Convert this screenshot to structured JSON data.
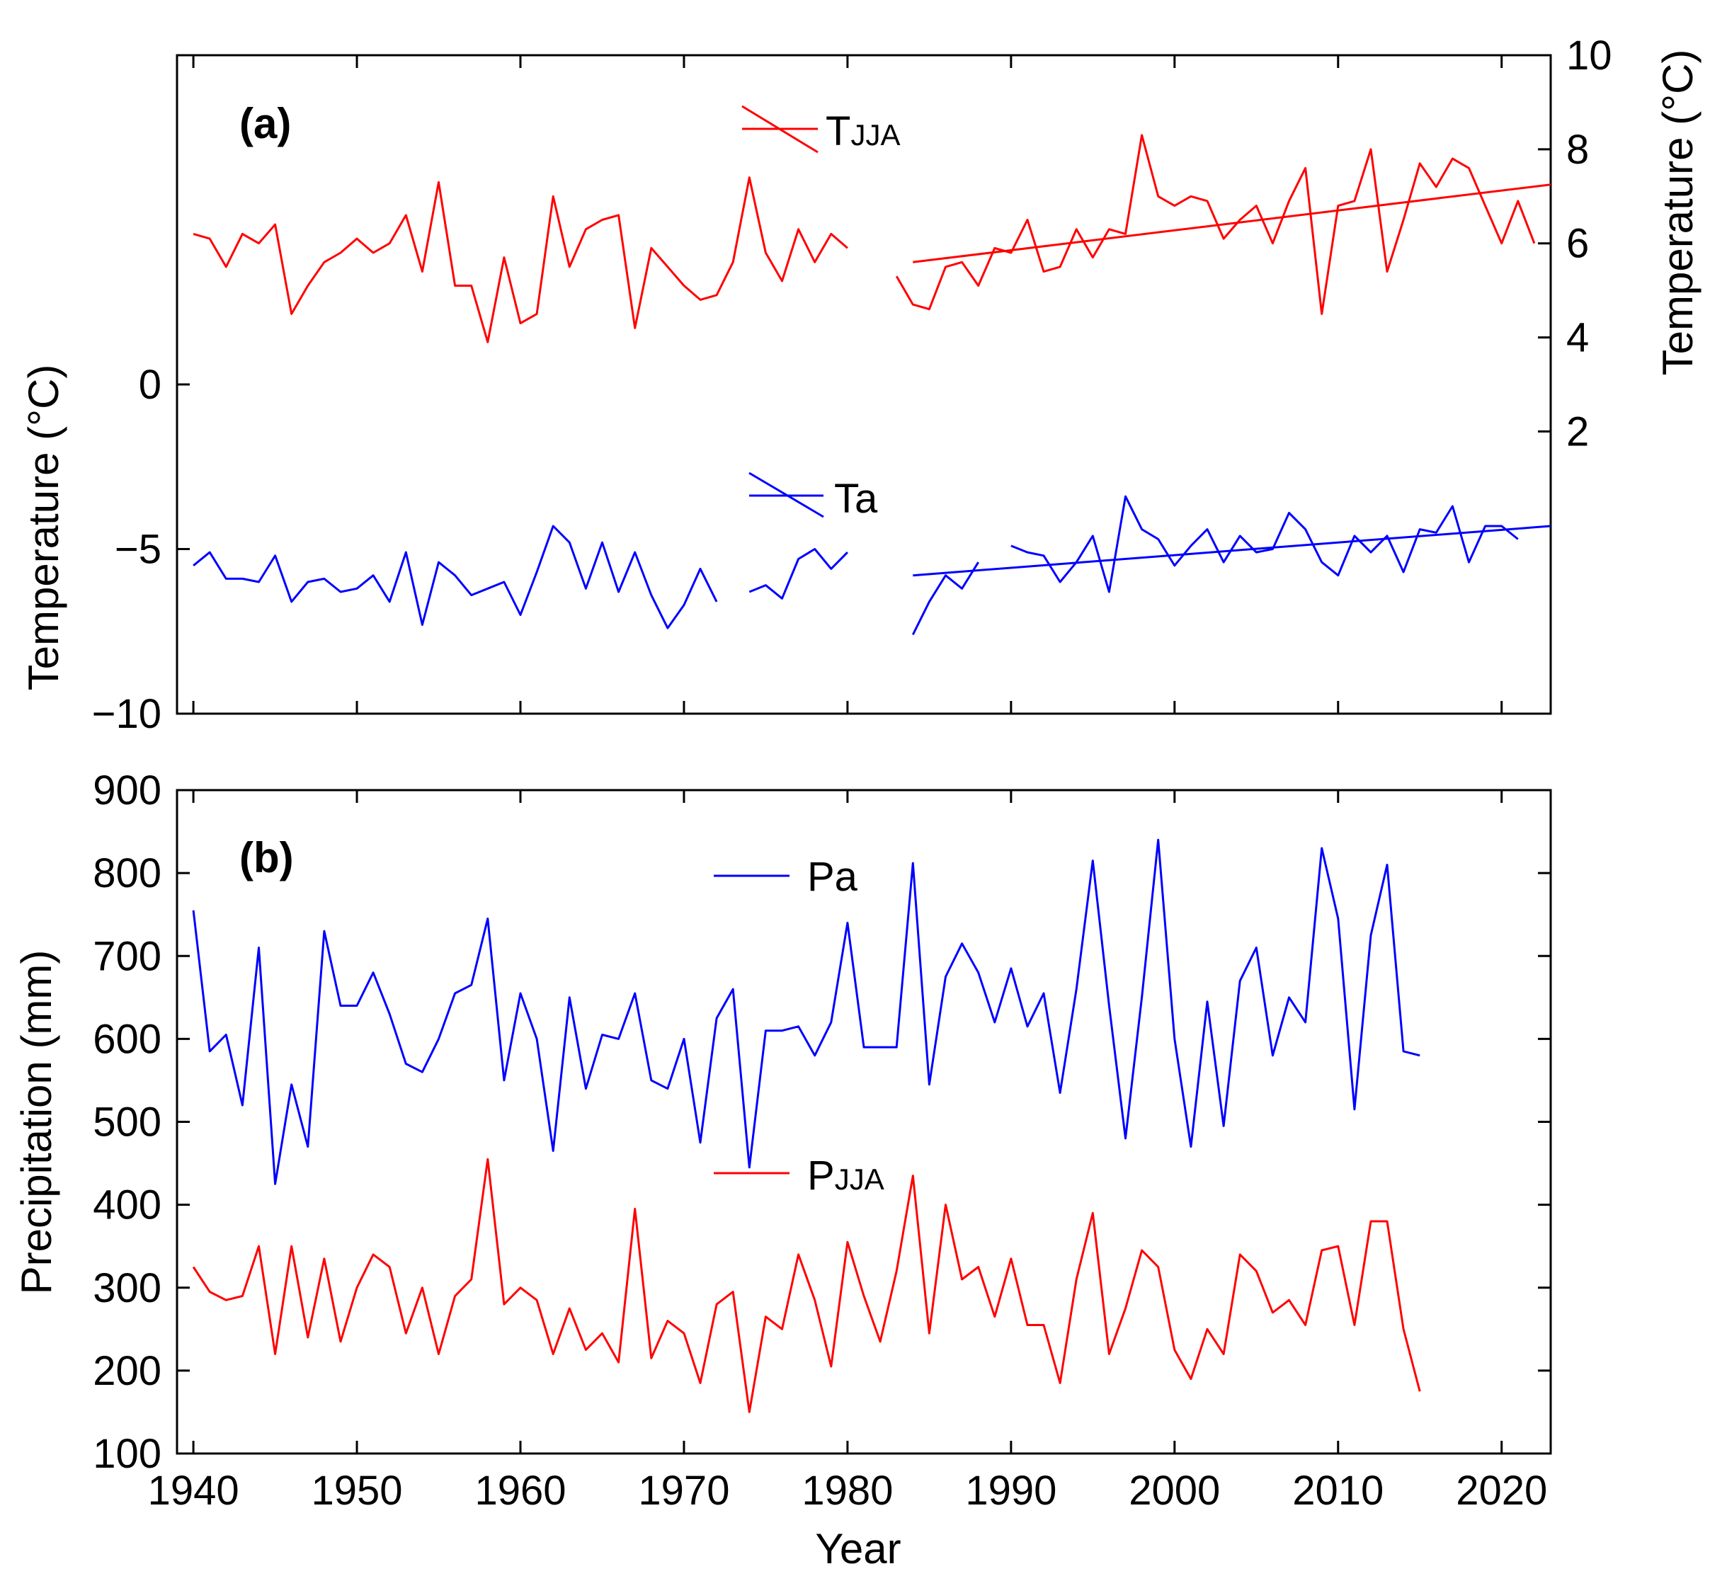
{
  "chart_data": [
    {
      "id": "a",
      "type": "line",
      "panel_label": "(a)",
      "xlabel": "",
      "ylabel_left": "Temperature (°C)",
      "ylabel_right": "Temperature (°C)",
      "xlim": [
        1939,
        2023
      ],
      "ylim_left": [
        -10,
        10
      ],
      "yticks_left": [
        "0",
        "−5",
        "−10"
      ],
      "yticks_left_values": [
        0,
        -5,
        -10
      ],
      "ylim_right": [
        -4,
        10
      ],
      "yticks_right": [
        "10",
        "8",
        "6",
        "4",
        "2"
      ],
      "yticks_right_values": [
        10,
        8,
        6,
        4,
        2
      ],
      "legend": [
        {
          "name": "TJJA",
          "main": "T",
          "sub": "JJA",
          "color": "#ff0000"
        },
        {
          "name": "Ta",
          "main": "Ta",
          "sub": "",
          "color": "#0000ff"
        }
      ],
      "series": [
        {
          "name": "TJJA",
          "axis": "right",
          "color": "#ff0000",
          "segments": [
            {
              "x": [
                1940,
                1941,
                1942,
                1943,
                1944,
                1945,
                1946,
                1947,
                1948,
                1949,
                1950,
                1951,
                1952,
                1953,
                1954,
                1955,
                1956,
                1957,
                1958,
                1959,
                1960,
                1961,
                1962,
                1963,
                1964,
                1965,
                1966,
                1967,
                1968,
                1969,
                1970,
                1971,
                1972,
                1973,
                1974,
                1975,
                1976,
                1977,
                1978,
                1979,
                1980
              ],
              "y": [
                6.2,
                6.1,
                5.5,
                6.2,
                6.0,
                6.4,
                4.5,
                5.1,
                5.6,
                5.8,
                6.1,
                5.8,
                6.0,
                6.6,
                5.4,
                7.3,
                5.1,
                5.1,
                3.9,
                5.7,
                4.3,
                4.5,
                7.0,
                5.5,
                6.3,
                6.5,
                6.6,
                4.2,
                5.9,
                5.5,
                5.1,
                4.8,
                4.9,
                5.6,
                7.4,
                5.8,
                5.2,
                6.3,
                5.6,
                6.2,
                5.9
              ]
            },
            {
              "x": [
                1983,
                1984,
                1985,
                1986,
                1987,
                1988,
                1989,
                1990,
                1991,
                1992,
                1993,
                1994,
                1995,
                1996,
                1997,
                1998,
                1999,
                2000,
                2001,
                2002,
                2003,
                2004,
                2005,
                2006,
                2007,
                2008,
                2009,
                2010,
                2011,
                2012,
                2013,
                2014,
                2015,
                2016,
                2017,
                2018,
                2019,
                2020,
                2021,
                2022
              ],
              "y": [
                5.3,
                4.7,
                4.6,
                5.5,
                5.6,
                5.1,
                5.9,
                5.8,
                6.5,
                5.4,
                5.5,
                6.3,
                5.7,
                6.3,
                6.2,
                8.3,
                7.0,
                6.8,
                7.0,
                6.9,
                6.1,
                6.5,
                6.8,
                6.0,
                6.9,
                7.6,
                4.5,
                6.8,
                6.9,
                8.0,
                5.4,
                6.5,
                7.7,
                7.2,
                7.8,
                7.6,
                6.8,
                6.0,
                6.9,
                6.0
              ]
            }
          ],
          "trend": {
            "x": [
              1984,
              2023
            ],
            "y": [
              5.6,
              7.25
            ]
          }
        },
        {
          "name": "Ta",
          "axis": "left",
          "color": "#0000ff",
          "segments": [
            {
              "x": [
                1940,
                1941,
                1942,
                1943,
                1944,
                1945,
                1946,
                1947,
                1948,
                1949,
                1950,
                1951,
                1952,
                1953,
                1954,
                1955,
                1956,
                1957,
                1958,
                1959,
                1960,
                1961,
                1962,
                1963,
                1964,
                1965,
                1966,
                1967,
                1968,
                1969,
                1970,
                1971,
                1972
              ],
              "y": [
                -5.5,
                -5.1,
                -5.9,
                -5.9,
                -6.0,
                -5.2,
                -6.6,
                -6.0,
                -5.9,
                -6.3,
                -6.2,
                -5.8,
                -6.6,
                -5.1,
                -7.3,
                -5.4,
                -5.8,
                -6.4,
                -6.2,
                -6.0,
                -7.0,
                -5.7,
                -4.3,
                -4.8,
                -6.2,
                -4.8,
                -6.3,
                -5.1,
                -6.4,
                -7.4,
                -6.7,
                -5.6,
                -6.6
              ]
            },
            {
              "x": [
                1974,
                1975,
                1976,
                1977,
                1978,
                1979,
                1980
              ],
              "y": [
                -6.3,
                -6.1,
                -6.5,
                -5.3,
                -5.0,
                -5.6,
                -5.1
              ]
            },
            {
              "x": [
                1984,
                1985,
                1986,
                1987,
                1988
              ],
              "y": [
                -7.6,
                -6.6,
                -5.8,
                -6.2,
                -5.4
              ]
            },
            {
              "x": [
                1990,
                1991,
                1992,
                1993,
                1994,
                1995,
                1996,
                1997,
                1998,
                1999,
                2000,
                2001,
                2002,
                2003,
                2004,
                2005,
                2006,
                2007,
                2008,
                2009,
                2010,
                2011,
                2012,
                2013,
                2014,
                2015,
                2016,
                2017,
                2018,
                2019,
                2020,
                2021
              ],
              "y": [
                -4.9,
                -5.1,
                -5.2,
                -6.0,
                -5.4,
                -4.6,
                -6.3,
                -3.4,
                -4.4,
                -4.7,
                -5.5,
                -4.9,
                -4.4,
                -5.4,
                -4.6,
                -5.1,
                -5.0,
                -3.9,
                -4.4,
                -5.4,
                -5.8,
                -4.6,
                -5.1,
                -4.6,
                -5.7,
                -4.4,
                -4.5,
                -3.7,
                -5.4,
                -4.3,
                -4.3,
                -4.7
              ]
            }
          ],
          "trend": {
            "x": [
              1984,
              2023
            ],
            "y": [
              -5.8,
              -4.3
            ]
          }
        }
      ]
    },
    {
      "id": "b",
      "type": "line",
      "panel_label": "(b)",
      "xlabel": "Year",
      "ylabel": "Precipitation (mm)",
      "xlim": [
        1939,
        2023
      ],
      "ylim": [
        100,
        900
      ],
      "yticks": [
        "900",
        "800",
        "700",
        "600",
        "500",
        "400",
        "300",
        "200",
        "100"
      ],
      "yticks_values": [
        900,
        800,
        700,
        600,
        500,
        400,
        300,
        200,
        100
      ],
      "xticks": [
        "1940",
        "1950",
        "1960",
        "1970",
        "1980",
        "1990",
        "2000",
        "2010",
        "2020"
      ],
      "xticks_values": [
        1940,
        1950,
        1960,
        1970,
        1980,
        1990,
        2000,
        2010,
        2020
      ],
      "legend": [
        {
          "name": "Pa",
          "main": "Pa",
          "sub": "",
          "color": "#0000ff"
        },
        {
          "name": "PJJA",
          "main": "P",
          "sub": "JJA",
          "color": "#ff0000"
        }
      ],
      "series": [
        {
          "name": "Pa",
          "color": "#0000ff",
          "x": [
            1940,
            1941,
            1942,
            1943,
            1944,
            1945,
            1946,
            1947,
            1948,
            1949,
            1950,
            1951,
            1952,
            1953,
            1954,
            1955,
            1956,
            1957,
            1958,
            1959,
            1960,
            1961,
            1962,
            1963,
            1964,
            1965,
            1966,
            1967,
            1968,
            1969,
            1970,
            1971,
            1972,
            1973,
            1974,
            1975,
            1976,
            1977,
            1978,
            1979,
            1980,
            1981,
            1982,
            1983,
            1984,
            1985,
            1986,
            1987,
            1988,
            1989,
            1990,
            1991,
            1992,
            1993,
            1994,
            1995,
            1996,
            1997,
            1998,
            1999,
            2000,
            2001,
            2002,
            2003,
            2004,
            2005,
            2006,
            2007,
            2008,
            2009,
            2010,
            2011,
            2012,
            2013,
            2014,
            2015
          ],
          "y": [
            755,
            585,
            605,
            520,
            710,
            425,
            545,
            470,
            730,
            640,
            640,
            680,
            630,
            570,
            560,
            600,
            655,
            665,
            745,
            550,
            655,
            600,
            465,
            650,
            540,
            605,
            600,
            655,
            550,
            540,
            600,
            475,
            625,
            660,
            445,
            610,
            610,
            615,
            580,
            620,
            740,
            590,
            590,
            590,
            812,
            545,
            675,
            715,
            680,
            620,
            685,
            615,
            655,
            535,
            660,
            815,
            640,
            480,
            650,
            840,
            600,
            470,
            645,
            495,
            670,
            710,
            580,
            650,
            620,
            830,
            745,
            515,
            725,
            810,
            585,
            580
          ]
        },
        {
          "name": "PJJA",
          "color": "#ff0000",
          "x": [
            1940,
            1941,
            1942,
            1943,
            1944,
            1945,
            1946,
            1947,
            1948,
            1949,
            1950,
            1951,
            1952,
            1953,
            1954,
            1955,
            1956,
            1957,
            1958,
            1959,
            1960,
            1961,
            1962,
            1963,
            1964,
            1965,
            1966,
            1967,
            1968,
            1969,
            1970,
            1971,
            1972,
            1973,
            1974,
            1975,
            1976,
            1977,
            1978,
            1979,
            1980,
            1981,
            1982,
            1983,
            1984,
            1985,
            1986,
            1987,
            1988,
            1989,
            1990,
            1991,
            1992,
            1993,
            1994,
            1995,
            1996,
            1997,
            1998,
            1999,
            2000,
            2001,
            2002,
            2003,
            2004,
            2005,
            2006,
            2007,
            2008,
            2009,
            2010,
            2011,
            2012,
            2013,
            2014,
            2015
          ],
          "y": [
            325,
            295,
            285,
            290,
            350,
            220,
            350,
            240,
            335,
            235,
            300,
            340,
            325,
            245,
            300,
            220,
            290,
            310,
            455,
            280,
            300,
            285,
            220,
            275,
            225,
            245,
            210,
            395,
            215,
            260,
            245,
            185,
            280,
            295,
            150,
            265,
            250,
            340,
            285,
            205,
            355,
            290,
            235,
            320,
            435,
            245,
            400,
            310,
            325,
            265,
            335,
            255,
            255,
            185,
            310,
            390,
            220,
            275,
            345,
            325,
            225,
            190,
            250,
            220,
            340,
            320,
            270,
            285,
            255,
            345,
            350,
            255,
            380,
            380,
            250,
            175
          ]
        }
      ]
    }
  ]
}
